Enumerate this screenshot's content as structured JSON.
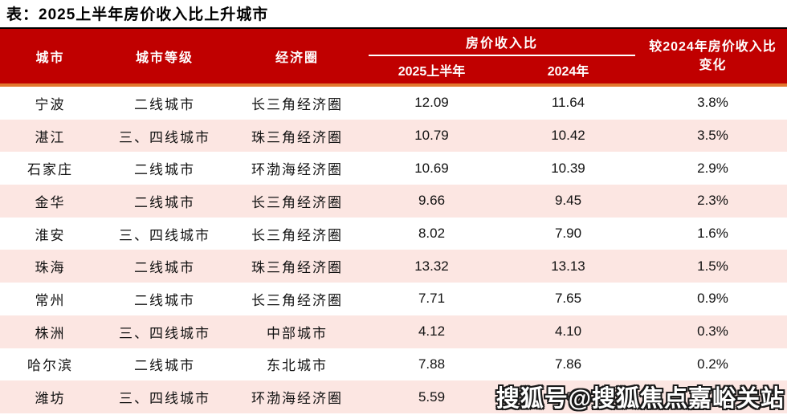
{
  "title": "表：2025上半年房价收入比上升城市",
  "chart_data": {
    "type": "table",
    "title": "表：2025上半年房价收入比上升城市",
    "columns": [
      "城市",
      "城市等级",
      "经济圈"
    ],
    "group_header": {
      "label": "房价收入比",
      "sub_columns": [
        "2025上半年",
        "2024年"
      ]
    },
    "change_header": "较2024年房价收入比变化",
    "rows": [
      {
        "city": "宁波",
        "tier": "二线城市",
        "circle": "长三角经济圈",
        "v2025": "12.09",
        "v2024": "11.64",
        "change": "3.8%"
      },
      {
        "city": "湛江",
        "tier": "三、四线城市",
        "circle": "珠三角经济圈",
        "v2025": "10.79",
        "v2024": "10.42",
        "change": "3.5%"
      },
      {
        "city": "石家庄",
        "tier": "二线城市",
        "circle": "环渤海经济圈",
        "v2025": "10.69",
        "v2024": "10.39",
        "change": "2.9%"
      },
      {
        "city": "金华",
        "tier": "二线城市",
        "circle": "长三角经济圈",
        "v2025": "9.66",
        "v2024": "9.45",
        "change": "2.3%"
      },
      {
        "city": "淮安",
        "tier": "三、四线城市",
        "circle": "长三角经济圈",
        "v2025": "8.02",
        "v2024": "7.90",
        "change": "1.6%"
      },
      {
        "city": "珠海",
        "tier": "二线城市",
        "circle": "珠三角经济圈",
        "v2025": "13.32",
        "v2024": "13.13",
        "change": "1.5%"
      },
      {
        "city": "常州",
        "tier": "二线城市",
        "circle": "长三角经济圈",
        "v2025": "7.71",
        "v2024": "7.65",
        "change": "0.9%"
      },
      {
        "city": "株洲",
        "tier": "三、四线城市",
        "circle": "中部城市",
        "v2025": "4.12",
        "v2024": "4.10",
        "change": "0.3%"
      },
      {
        "city": "哈尔滨",
        "tier": "二线城市",
        "circle": "东北城市",
        "v2025": "7.88",
        "v2024": "7.86",
        "change": "0.2%"
      },
      {
        "city": "潍坊",
        "tier": "三、四线城市",
        "circle": "环渤海经济圈",
        "v2025": "5.59",
        "v2024": "5.58",
        "change": "0.2%"
      }
    ]
  },
  "watermark": "搜狐号@搜狐焦点嘉峪关站",
  "colors": {
    "header_bg": "#C00000",
    "header_text": "#FFFFFF",
    "accent_line": "#E2772E",
    "row_alt_bg": "#FCE6E2",
    "top_line": "#000000"
  }
}
